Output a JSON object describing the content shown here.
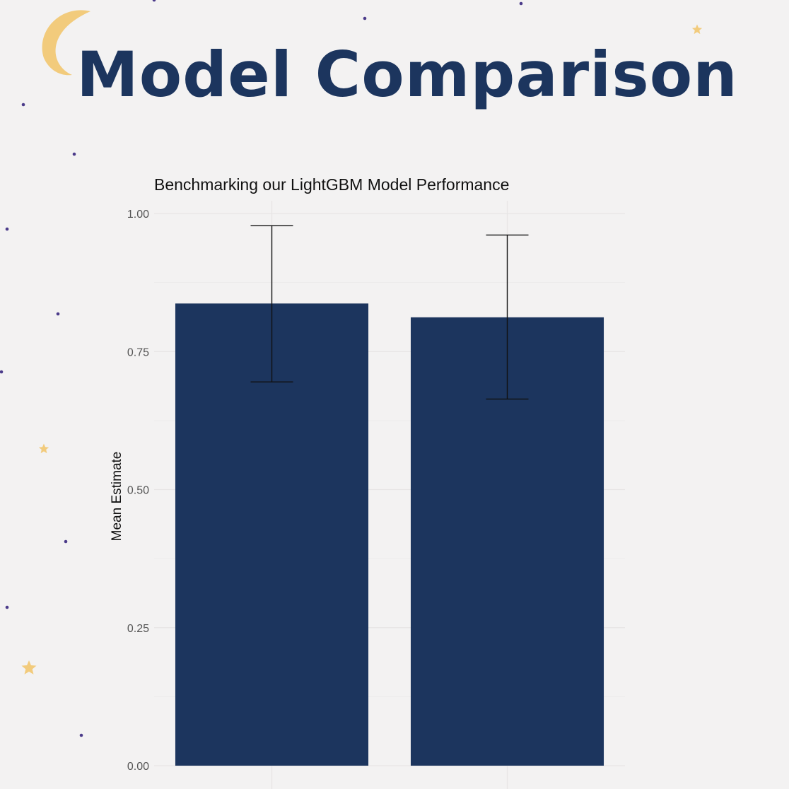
{
  "page": {
    "title": "Model Comparison",
    "accent_color": "#1c355e",
    "decor_color": "#f2cb7c",
    "dot_color": "#4b3b8a",
    "decorations": [
      "moon-icon",
      "star-icon",
      "dot"
    ]
  },
  "chart_data": {
    "type": "bar",
    "title": "Benchmarking our LightGBM Model Performance",
    "xlabel": "",
    "ylabel": "Mean Estimate",
    "categories": [
      "",
      ""
    ],
    "values": [
      0.837,
      0.812
    ],
    "error_low": [
      0.695,
      0.664
    ],
    "error_high": [
      0.978,
      0.961
    ],
    "ylim": [
      0,
      1
    ],
    "yticks": [
      0,
      0.25,
      0.5,
      0.75,
      1
    ],
    "ytick_labels": [
      "0.00",
      "0.25",
      "0.50",
      "0.75",
      "1.00"
    ],
    "bar_color": "#1c355e",
    "grid": true,
    "legend": "none"
  }
}
